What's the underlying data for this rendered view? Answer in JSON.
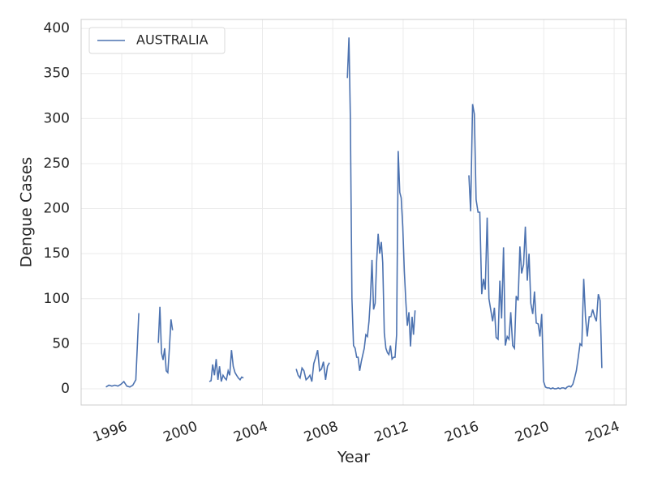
{
  "chart_data": {
    "type": "line",
    "x_label": "Year",
    "y_label": "Dengue Cases",
    "xlim": [
      1993.69,
      2024.69
    ],
    "ylim": [
      -18,
      410
    ],
    "xticks": [
      1996,
      2000,
      2004,
      2008,
      2012,
      2016,
      2020,
      2024
    ],
    "yticks": [
      0,
      50,
      100,
      150,
      200,
      250,
      300,
      350,
      400
    ],
    "grid": true,
    "legend": "upper-left",
    "x": [
      1995.1,
      1995.27,
      1995.44,
      1995.61,
      1995.78,
      1995.95,
      1996.12,
      1996.29,
      1996.46,
      1996.63,
      1996.8,
      1996.97,
      1997.5,
      1998.08,
      1998.17,
      1998.26,
      1998.35,
      1998.44,
      1998.53,
      1998.62,
      1998.71,
      1998.8,
      1998.89,
      2000.0,
      2000.98,
      2001.08,
      2001.17,
      2001.27,
      2001.37,
      2001.47,
      2001.56,
      2001.66,
      2001.76,
      2001.85,
      2001.95,
      2002.05,
      2002.14,
      2002.24,
      2002.34,
      2002.44,
      2002.53,
      2002.63,
      2002.73,
      2002.82,
      2002.92,
      2004.5,
      2005.92,
      2006.03,
      2006.14,
      2006.25,
      2006.36,
      2006.48,
      2006.59,
      2006.7,
      2006.81,
      2006.92,
      2007.03,
      2007.14,
      2007.25,
      2007.36,
      2007.47,
      2007.59,
      2007.7,
      2007.81,
      2008.3,
      2008.83,
      2008.92,
      2009.0,
      2009.09,
      2009.18,
      2009.27,
      2009.36,
      2009.44,
      2009.53,
      2009.62,
      2009.71,
      2009.79,
      2009.88,
      2009.97,
      2010.06,
      2010.14,
      2010.23,
      2010.32,
      2010.41,
      2010.49,
      2010.58,
      2010.67,
      2010.76,
      2010.84,
      2010.93,
      2011.02,
      2011.11,
      2011.19,
      2011.28,
      2011.37,
      2011.46,
      2011.54,
      2011.63,
      2011.72,
      2011.81,
      2011.89,
      2011.98,
      2012.07,
      2012.16,
      2012.24,
      2012.33,
      2012.42,
      2012.51,
      2012.59,
      2012.68,
      2014.2,
      2015.74,
      2015.84,
      2015.95,
      2016.05,
      2016.15,
      2016.26,
      2016.36,
      2016.47,
      2016.57,
      2016.67,
      2016.78,
      2016.88,
      2016.98,
      2017.09,
      2017.19,
      2017.29,
      2017.4,
      2017.5,
      2017.6,
      2017.71,
      2017.81,
      2017.92,
      2018.02,
      2018.12,
      2018.23,
      2018.33,
      2018.43,
      2018.54,
      2018.64,
      2018.74,
      2018.85,
      2018.95,
      2019.06,
      2019.16,
      2019.26,
      2019.37,
      2019.47,
      2019.57,
      2019.68,
      2019.78,
      2019.88,
      2019.99,
      2020.09,
      2020.19,
      2020.3,
      2020.4,
      2020.51,
      2020.61,
      2020.71,
      2020.82,
      2020.92,
      2021.02,
      2021.13,
      2021.23,
      2021.33,
      2021.44,
      2021.54,
      2021.65,
      2021.75,
      2021.85,
      2021.96,
      2022.06,
      2022.16,
      2022.27,
      2022.37,
      2022.47,
      2022.58,
      2022.68,
      2022.78,
      2022.89,
      2022.99,
      2023.1,
      2023.2,
      2023.3
    ],
    "series": [
      {
        "name": "AUSTRALIA",
        "color": "#4c72b0",
        "values": [
          2,
          4,
          3,
          4,
          3,
          5,
          8,
          3,
          2,
          4,
          10,
          84,
          null,
          51,
          91,
          40,
          32,
          45,
          20,
          18,
          45,
          77,
          65,
          null,
          8,
          9,
          27,
          15,
          33,
          10,
          25,
          8,
          15,
          12,
          10,
          20,
          15,
          43,
          25,
          18,
          15,
          12,
          10,
          13,
          12,
          null,
          22,
          15,
          12,
          23,
          20,
          10,
          12,
          15,
          8,
          28,
          35,
          43,
          20,
          22,
          30,
          10,
          25,
          29,
          null,
          345,
          390,
          300,
          100,
          48,
          45,
          35,
          35,
          20,
          30,
          38,
          45,
          60,
          58,
          75,
          100,
          143,
          88,
          95,
          140,
          172,
          150,
          163,
          140,
          62,
          45,
          40,
          38,
          48,
          33,
          35,
          35,
          60,
          264,
          218,
          212,
          180,
          130,
          95,
          70,
          85,
          47,
          80,
          60,
          87,
          null,
          237,
          197,
          316,
          305,
          210,
          196,
          196,
          105,
          122,
          110,
          190,
          100,
          88,
          75,
          90,
          57,
          55,
          120,
          78,
          157,
          48,
          58,
          55,
          85,
          48,
          45,
          103,
          98,
          158,
          128,
          138,
          180,
          120,
          150,
          95,
          83,
          108,
          73,
          72,
          58,
          83,
          8,
          2,
          1,
          1,
          0,
          1,
          0,
          0,
          1,
          0,
          1,
          1,
          0,
          2,
          3,
          2,
          5,
          12,
          20,
          35,
          50,
          48,
          122,
          80,
          58,
          80,
          80,
          88,
          80,
          75,
          105,
          98,
          23
        ]
      }
    ]
  }
}
